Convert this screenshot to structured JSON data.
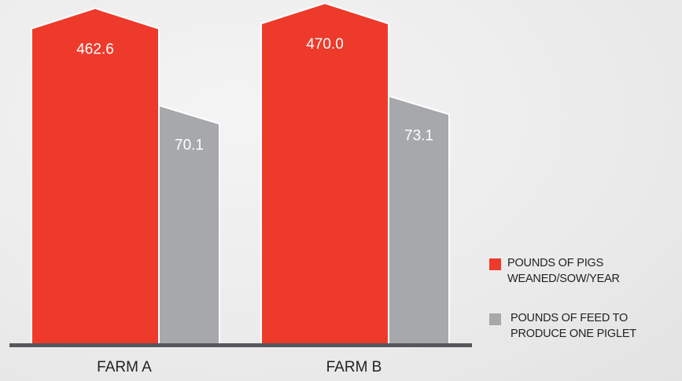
{
  "chart_data": {
    "type": "bar",
    "categories": [
      "FARM A",
      "FARM B"
    ],
    "series": [
      {
        "name": "POUNDS OF PIGS WEANED/SOW/YEAR",
        "values": [
          462.6,
          470.0
        ],
        "labels": [
          "462.6",
          "470.0"
        ],
        "color": "#ee3a2b"
      },
      {
        "name": "POUNDS OF FEED TO PRODUCE ONE PIGLET",
        "values": [
          70.1,
          73.1
        ],
        "labels": [
          "70.1",
          "73.1"
        ],
        "color": "#a7a8ac"
      }
    ],
    "legend": {
      "position": "bottom-right",
      "items": [
        {
          "line1": "POUNDS OF PIGS",
          "line2": "WEANED/SOW/YEAR",
          "color": "#ee3a2b"
        },
        {
          "line1": "POUNDS OF FEED TO",
          "line2": "PRODUCE ONE PIGLET",
          "color": "#a7a8ac"
        }
      ]
    },
    "axis_color": "#55575b",
    "grid": false
  }
}
